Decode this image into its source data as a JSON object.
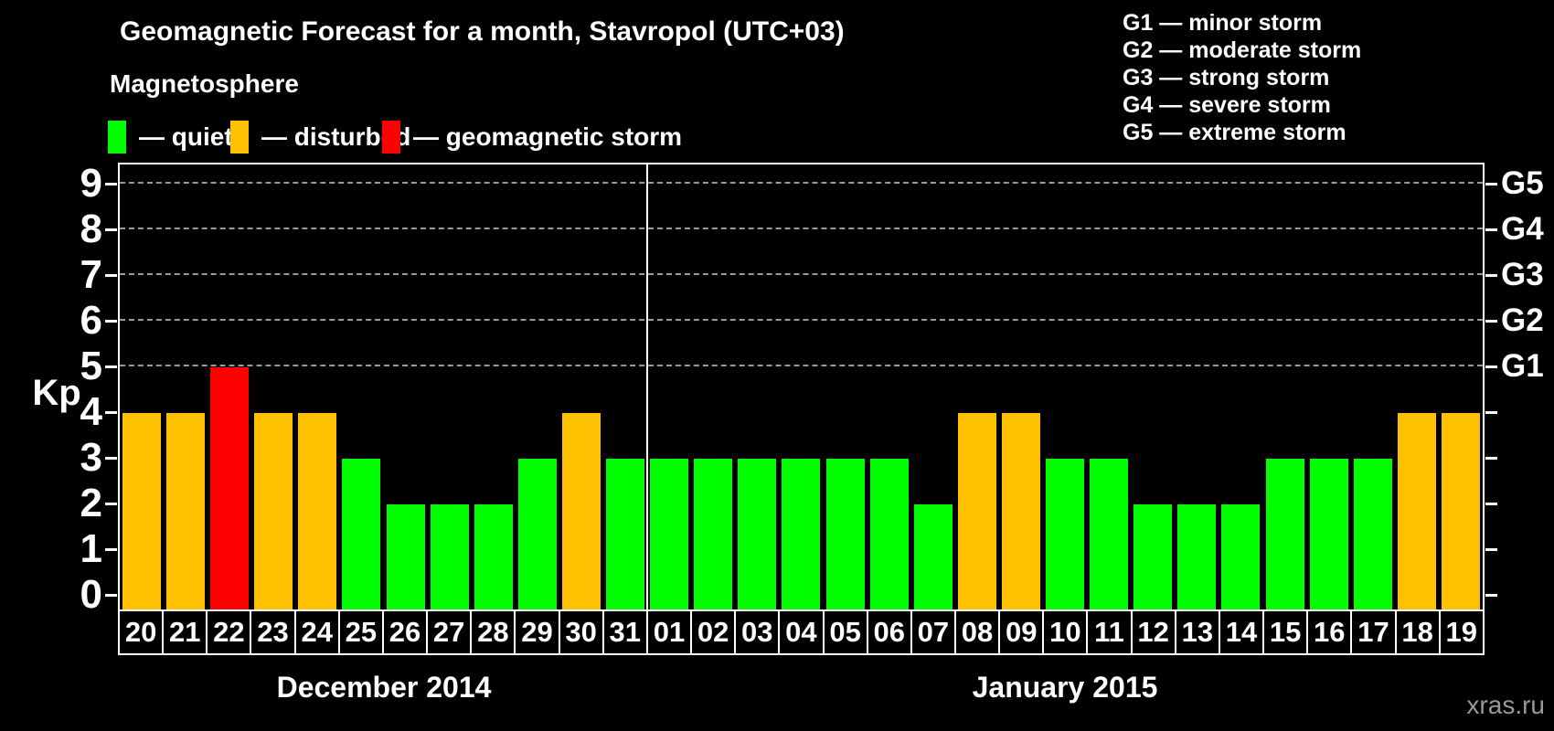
{
  "title": "Geomagnetic Forecast for a month, Stavropol (UTC+03)",
  "subtitle": "Magnetosphere",
  "watermark": "xras.ru",
  "colors": {
    "quiet": "#00ff00",
    "disturbed": "#ffc000",
    "storm": "#ff0000",
    "grid": "#9a9a9a",
    "watermark": "#999999"
  },
  "legend": {
    "items": [
      {
        "status": "quiet",
        "label": "— quiet"
      },
      {
        "status": "disturbed",
        "label": "— disturbed"
      },
      {
        "status": "storm",
        "label": "— geomagnetic storm"
      }
    ]
  },
  "storm_scale": [
    "G1 — minor storm",
    "G2 — moderate storm",
    "G3 — strong storm",
    "G4 — severe storm",
    "G5 — extreme storm"
  ],
  "axis": {
    "left_label": "Kp",
    "kp_ticks": [
      0,
      1,
      2,
      3,
      4,
      5,
      6,
      7,
      8,
      9
    ],
    "right_ticks": [
      {
        "label": "G1",
        "kp": 5
      },
      {
        "label": "G2",
        "kp": 6
      },
      {
        "label": "G3",
        "kp": 7
      },
      {
        "label": "G4",
        "kp": 8
      },
      {
        "label": "G5",
        "kp": 9
      }
    ]
  },
  "chart_data": {
    "type": "bar",
    "title": "Geomagnetic Forecast for a month, Stavropol (UTC+03)",
    "ylabel": "Kp",
    "ylim": [
      0,
      9.5
    ],
    "gridlines": [
      5,
      6,
      7,
      8,
      9
    ],
    "legend_position": "top",
    "color_rule": {
      "quiet_max": 3,
      "disturbed": 4,
      "storm_min": 5
    },
    "series": [
      {
        "month": "December 2014",
        "days": [
          "20",
          "21",
          "22",
          "23",
          "24",
          "25",
          "26",
          "27",
          "28",
          "29",
          "30",
          "31"
        ],
        "kp": [
          4,
          4,
          5,
          4,
          4,
          3,
          2,
          2,
          2,
          3,
          4,
          3
        ]
      },
      {
        "month": "January 2015",
        "days": [
          "01",
          "02",
          "03",
          "04",
          "05",
          "06",
          "07",
          "08",
          "09",
          "10",
          "11",
          "12",
          "13",
          "14",
          "15",
          "16",
          "17",
          "18",
          "19"
        ],
        "kp": [
          3,
          3,
          3,
          3,
          3,
          3,
          2,
          4,
          4,
          3,
          3,
          2,
          2,
          2,
          3,
          3,
          3,
          4,
          4
        ]
      }
    ]
  }
}
